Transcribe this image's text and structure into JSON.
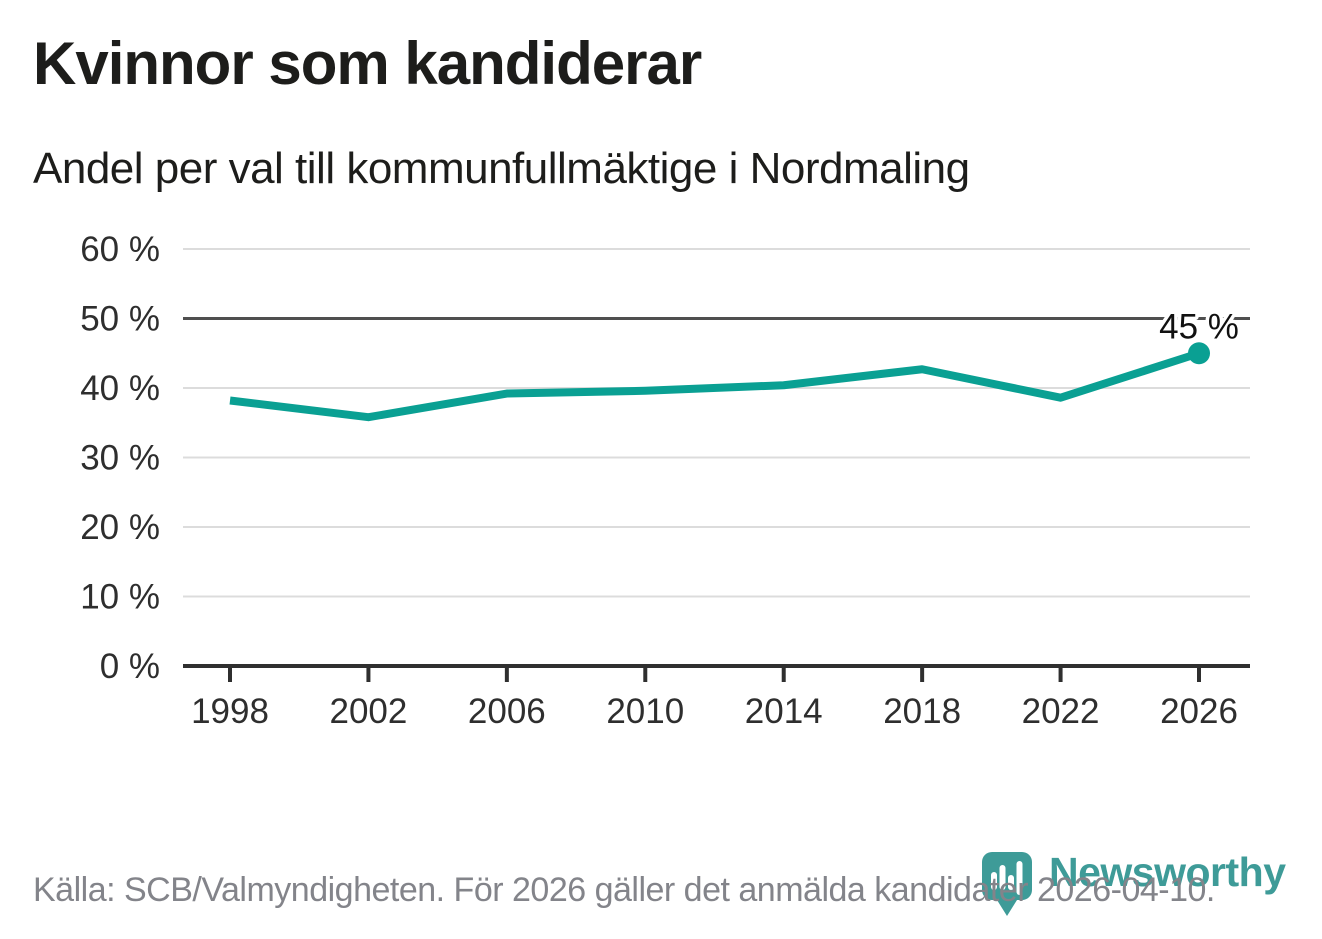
{
  "header": {
    "title": "Kvinnor som kandiderar",
    "subtitle": "Andel per val till kommunfullmäktige i Nordmaling"
  },
  "chart_data": {
    "type": "line",
    "title": "Kvinnor som kandiderar",
    "subtitle": "Andel per val till kommunfullmäktige i Nordmaling",
    "x": [
      1998,
      2002,
      2006,
      2010,
      2014,
      2018,
      2022,
      2026
    ],
    "xtick_labels": [
      "1998",
      "2002",
      "2006",
      "2010",
      "2014",
      "2018",
      "2022",
      "2026"
    ],
    "values": [
      38.2,
      35.8,
      39.2,
      39.6,
      40.4,
      42.7,
      38.6,
      45
    ],
    "xlabel": "",
    "ylabel": "",
    "ylim": [
      0,
      60
    ],
    "ytick_step": 10,
    "ytick_suffix": " %",
    "reference_line": 50,
    "grid": true,
    "legend": "none",
    "last_point_marker": true,
    "end_label": "45 %"
  },
  "footer": {
    "source": "Källa: SCB/Valmyndigheten. För 2026 gäller det anmälda kandidater 2026-04-10."
  },
  "branding": {
    "name": "Newsworthy",
    "logo_icon": "newsworthy-pin-barchart-icon"
  },
  "colors": {
    "line": "#0aa093",
    "marker": "#0aa093",
    "grid": "#dcdcdc",
    "reference_line": "#4f4f4f",
    "axis": "#2f2f2f",
    "tick_text": "#2e2e2e",
    "title_text": "#1d1d1b",
    "end_label_text": "#111111",
    "footer_text": "#83848a",
    "brand": "#3e9b98",
    "background": "#ffffff"
  }
}
